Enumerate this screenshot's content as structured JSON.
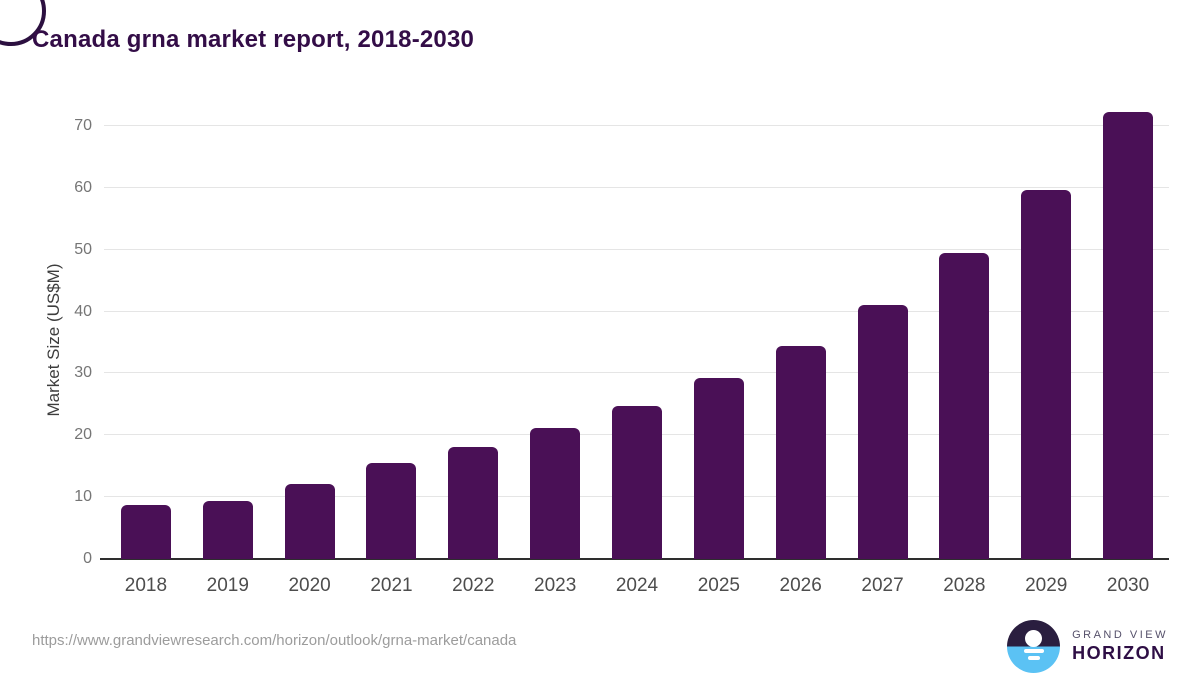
{
  "title": "Canada grna market report, 2018-2030",
  "chart_data": {
    "type": "bar",
    "title": "Canada grna market report, 2018-2030",
    "categories": [
      "2018",
      "2019",
      "2020",
      "2021",
      "2022",
      "2023",
      "2024",
      "2025",
      "2026",
      "2027",
      "2028",
      "2029",
      "2030"
    ],
    "values": [
      8.7,
      9.4,
      12.1,
      15.6,
      18.1,
      21.2,
      24.7,
      29.2,
      34.5,
      41.1,
      49.5,
      59.6,
      72.3
    ],
    "xlabel": "",
    "ylabel": "Market Size (US$M)",
    "ylim": [
      0,
      74
    ],
    "yticks": [
      0,
      10,
      20,
      30,
      40,
      50,
      60,
      70
    ],
    "grid": "horizontal",
    "legend": "none",
    "bar_color": "#4a1056"
  },
  "footer": {
    "source_url": "https://www.grandviewresearch.com/horizon/outlook/grna-market/canada",
    "logo": {
      "line1": "GRAND VIEW",
      "line2": "HORIZON",
      "icon": "horizon-sun-icon"
    }
  },
  "colors": {
    "bar": "#4a1056",
    "title_text": "#330d47",
    "axis_line": "#2e2e2e",
    "gridline": "#e5e5e5",
    "y_tick_text": "#757575",
    "x_tick_text": "#4d4d4d",
    "url_text": "#9c9c9c",
    "logo_navy": "#2a1e3f",
    "logo_blue": "#5bc2f4"
  }
}
